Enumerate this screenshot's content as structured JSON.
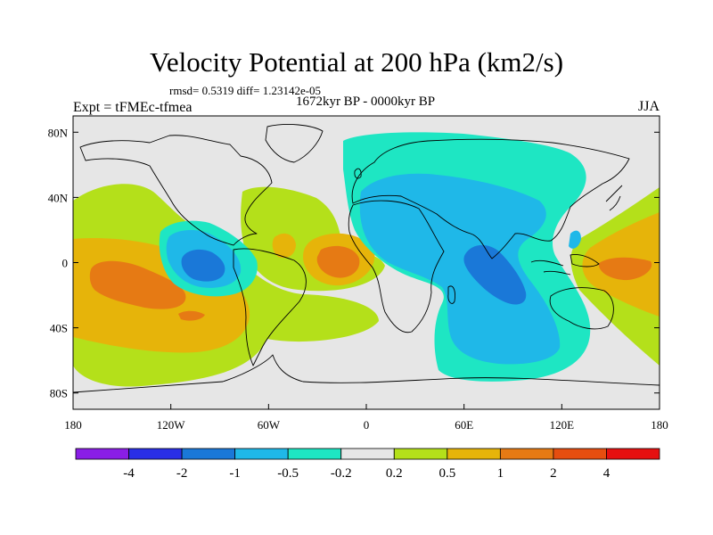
{
  "header": {
    "title": "Velocity Potential at 200 hPa (km2/s)",
    "stats": "rmsd= 0.5319 diff= 1.23142e-05",
    "period": "1672kyr BP - 0000kyr BP",
    "experiment": "Expt = tFMEc-tfmea",
    "season": "JJA"
  },
  "axes": {
    "y_ticks": [
      {
        "value": 80,
        "label": "80N"
      },
      {
        "value": 40,
        "label": "40N"
      },
      {
        "value": 0,
        "label": "0"
      },
      {
        "value": -40,
        "label": "40S"
      },
      {
        "value": -80,
        "label": "80S"
      }
    ],
    "x_ticks": [
      {
        "value": -180,
        "label": "180"
      },
      {
        "value": -120,
        "label": "120W"
      },
      {
        "value": -60,
        "label": "60W"
      },
      {
        "value": 0,
        "label": "0"
      },
      {
        "value": 60,
        "label": "60E"
      },
      {
        "value": 120,
        "label": "120E"
      },
      {
        "value": 180,
        "label": "180"
      }
    ],
    "lon_range": [
      -180,
      180
    ],
    "lat_range": [
      -90,
      90
    ]
  },
  "colorbar": {
    "colors": [
      "#8a1ee6",
      "#2a2ee6",
      "#1a78d8",
      "#1fb8e8",
      "#1ee6c3",
      "#e6e6e6",
      "#b4e01a",
      "#e6b40a",
      "#e67a14",
      "#e64e10",
      "#e61010"
    ],
    "labels": [
      "-4",
      "-2",
      "-1",
      "-0.5",
      "-0.2",
      "0.2",
      "0.5",
      "1",
      "2",
      "4"
    ]
  },
  "map_colors": {
    "neutral": "#e6e6e6",
    "coast": "#000000"
  }
}
